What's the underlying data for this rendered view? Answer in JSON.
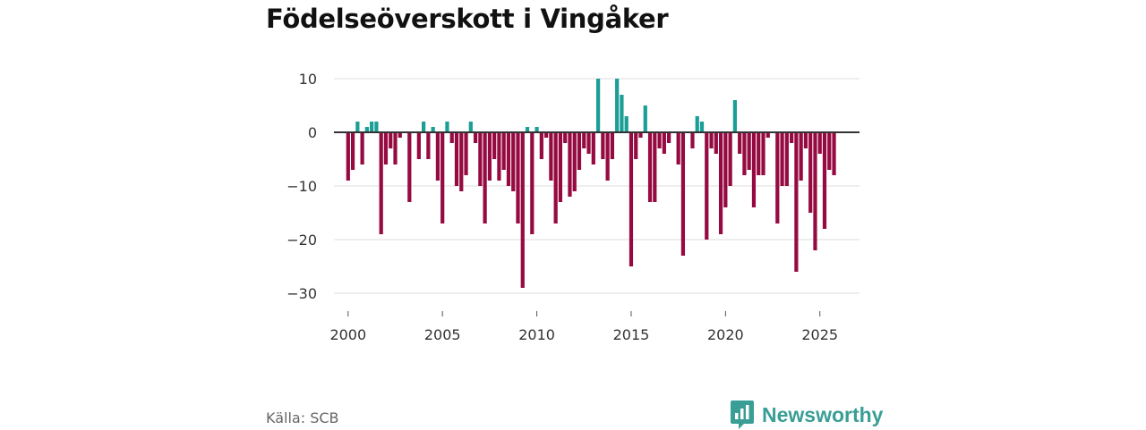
{
  "chart_data": {
    "type": "bar",
    "title": "Födelseöverskott i Vingåker",
    "xlabel": "",
    "ylabel": "",
    "x_range": [
      1999.25,
      2027.1
    ],
    "ylim": [
      -33,
      12
    ],
    "yticks": [
      10,
      0,
      -10,
      -20,
      -30
    ],
    "ytick_labels": [
      "10",
      "0",
      "−10",
      "−20",
      "−30"
    ],
    "xticks": [
      2000,
      2005,
      2010,
      2015,
      2020,
      2025
    ],
    "xtick_labels": [
      "2000",
      "2005",
      "2010",
      "2015",
      "2020",
      "2025"
    ],
    "bar_step": 0.25,
    "series": [
      {
        "name": "Födelseöverskott",
        "start": 2000.0,
        "values": [
          -9,
          -7,
          2,
          -6,
          1,
          2,
          2,
          -19,
          -6,
          -3,
          -6,
          -1,
          0,
          -13,
          0,
          -5,
          2,
          -5,
          1,
          -9,
          -17,
          2,
          -2,
          -10,
          -11,
          -8,
          2,
          -2,
          -10,
          -17,
          -9,
          -5,
          -9,
          -7,
          -10,
          -11,
          -17,
          -29,
          1,
          -19,
          1,
          -5,
          -1,
          -9,
          -17,
          -13,
          -2,
          -12,
          -11,
          -7,
          -3,
          -4,
          -6,
          10,
          -5,
          -9,
          -5,
          10,
          7,
          3,
          -25,
          -5,
          -1,
          5,
          -13,
          -13,
          -3,
          -4,
          -2,
          0,
          -6,
          -23,
          0,
          -3,
          3,
          2,
          -20,
          -3,
          -4,
          -19,
          -14,
          -10,
          6,
          -4,
          -8,
          -7,
          -14,
          -8,
          -8,
          -1,
          0,
          -17,
          -10,
          -10,
          -2,
          -26,
          -9,
          -3,
          -15,
          -22,
          -4,
          -18,
          -7,
          -8
        ]
      }
    ],
    "positive_color": "#1a9e96",
    "negative_color": "#960a42"
  },
  "footer": {
    "source": "Källa: SCB",
    "brand": "Newsworthy"
  },
  "icons": {
    "brand_logo": "newsworthy-logo-icon"
  },
  "colors": {
    "brand": "#3a9e96",
    "grid": "#dddddd",
    "zero_line": "#333333"
  }
}
